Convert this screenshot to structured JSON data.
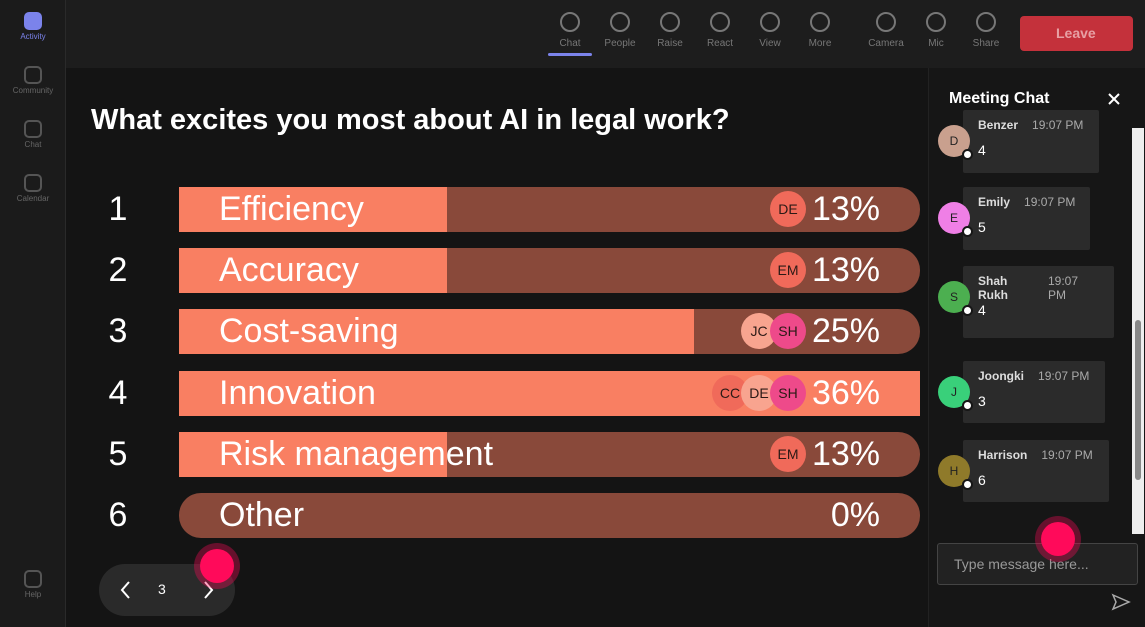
{
  "rail": [
    "Activity",
    "Community",
    "Chat",
    "Calendar",
    "Help"
  ],
  "toolbar": [
    "Chat",
    "People",
    "Raise",
    "React",
    "View",
    "More",
    "Camera",
    "Mic",
    "Share"
  ],
  "leave": "Leave",
  "poll": {
    "question": "What excites you most about AI in legal work?",
    "options": [
      {
        "rank": 1,
        "label": "Efficiency",
        "value": 13,
        "value_label": "13%",
        "voters": [
          "DE"
        ]
      },
      {
        "rank": 2,
        "label": "Accuracy",
        "value": 13,
        "value_label": "13%",
        "voters": [
          "EM"
        ]
      },
      {
        "rank": 3,
        "label": "Cost-saving",
        "value": 25,
        "value_label": "25%",
        "voters": [
          "JC",
          "SH"
        ]
      },
      {
        "rank": 4,
        "label": "Innovation",
        "value": 36,
        "value_label": "36%",
        "voters": [
          "CC",
          "DE",
          "SH"
        ]
      },
      {
        "rank": 5,
        "label": "Risk management",
        "value": 13,
        "value_label": "13%",
        "voters": [
          "EM"
        ]
      },
      {
        "rank": 6,
        "label": "Other",
        "value": 0,
        "value_label": "0%",
        "voters": []
      }
    ]
  },
  "pager": "3",
  "chat": {
    "title": "Meeting Chat",
    "messages": [
      {
        "initial": "D",
        "name": "Benzer",
        "time": "19:07 PM",
        "text": "4"
      },
      {
        "initial": "E",
        "name": "Emily",
        "time": "19:07 PM",
        "text": "5"
      },
      {
        "initial": "S",
        "name": "Shah Rukh",
        "time": "19:07 PM",
        "text": "4"
      },
      {
        "initial": "J",
        "name": "Joongki",
        "time": "19:07 PM",
        "text": "3"
      },
      {
        "initial": "H",
        "name": "Harrison",
        "time": "19:07 PM",
        "text": "6"
      }
    ],
    "placeholder": "Type message here..."
  }
}
